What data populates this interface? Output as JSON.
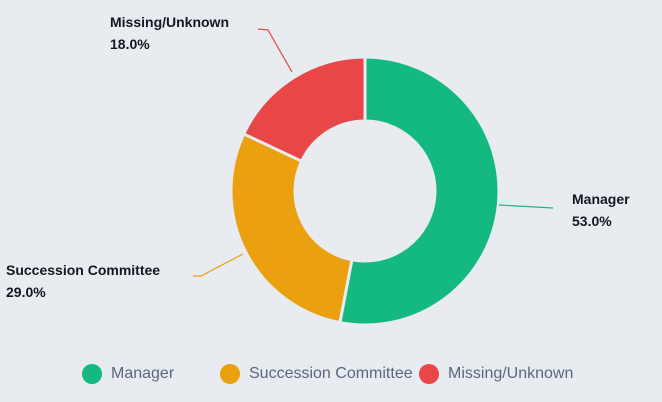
{
  "chart_data": {
    "type": "pie",
    "variant": "donut",
    "title": "",
    "categories": [
      "Manager",
      "Succession Committee",
      "Missing/Unknown"
    ],
    "values": [
      53.0,
      29.0,
      18.0
    ],
    "value_labels": [
      "53.0%",
      "29.0%",
      "18.0%"
    ],
    "colors": [
      "#13b981",
      "#eaa00f",
      "#e84647"
    ],
    "legend_position": "bottom",
    "start_angle": "top, clockwise"
  },
  "labels": {
    "manager": {
      "name": "Manager",
      "pct": "53.0%"
    },
    "succession": {
      "name": "Succession Committee",
      "pct": "29.0%"
    },
    "missing": {
      "name": "Missing/Unknown",
      "pct": "18.0%"
    }
  },
  "legend": [
    {
      "label": "Manager",
      "color": "#13b981"
    },
    {
      "label": "Succession Committee",
      "color": "#eaa00f"
    },
    {
      "label": "Missing/Unknown",
      "color": "#e84647"
    }
  ]
}
